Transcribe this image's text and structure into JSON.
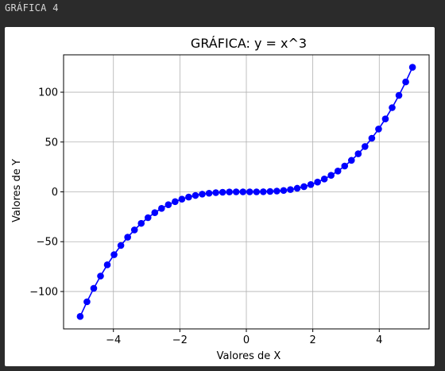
{
  "cell": {
    "header_label": "GRÁFICA 4"
  },
  "chart_data": {
    "type": "line",
    "title": "GRÁFICA: y = x^3",
    "xlabel": "Valores de X",
    "ylabel": "Valores de Y",
    "xlim": [
      -5.5,
      5.5
    ],
    "ylim": [
      -137.5,
      137.5
    ],
    "x_ticks": [
      -4,
      -2,
      0,
      2,
      4
    ],
    "y_ticks": [
      -100,
      -50,
      0,
      50,
      100
    ],
    "x_tick_labels": [
      "−4",
      "−2",
      "0",
      "2",
      "4"
    ],
    "y_tick_labels": [
      "−100",
      "−50",
      "0",
      "50",
      "100"
    ],
    "grid": true,
    "series": [
      {
        "color": "#0000ff",
        "marker": "circle",
        "x": [
          -5.0,
          -4.796,
          -4.592,
          -4.388,
          -4.184,
          -3.98,
          -3.776,
          -3.571,
          -3.367,
          -3.163,
          -2.959,
          -2.755,
          -2.551,
          -2.347,
          -2.143,
          -1.939,
          -1.735,
          -1.531,
          -1.327,
          -1.122,
          -0.918,
          -0.714,
          -0.51,
          -0.306,
          -0.102,
          0.102,
          0.306,
          0.51,
          0.714,
          0.918,
          1.122,
          1.327,
          1.531,
          1.735,
          1.939,
          2.143,
          2.347,
          2.551,
          2.755,
          2.959,
          3.163,
          3.367,
          3.571,
          3.776,
          3.98,
          4.184,
          4.388,
          4.592,
          4.796,
          5.0
        ],
        "y": [
          -125.0,
          -110.3,
          -96.8,
          -84.5,
          -73.2,
          -63.0,
          -53.8,
          -45.5,
          -38.2,
          -31.6,
          -25.9,
          -20.9,
          -16.6,
          -12.9,
          -9.8,
          -7.3,
          -5.2,
          -3.6,
          -2.3,
          -1.4,
          -0.8,
          -0.4,
          -0.1,
          0.0,
          0.0,
          0.0,
          0.0,
          0.1,
          0.4,
          0.8,
          1.4,
          2.3,
          3.6,
          5.2,
          7.3,
          9.8,
          12.9,
          16.6,
          20.9,
          25.9,
          31.6,
          38.2,
          45.5,
          53.8,
          63.0,
          73.2,
          84.5,
          96.8,
          110.3,
          125.0
        ]
      }
    ]
  }
}
